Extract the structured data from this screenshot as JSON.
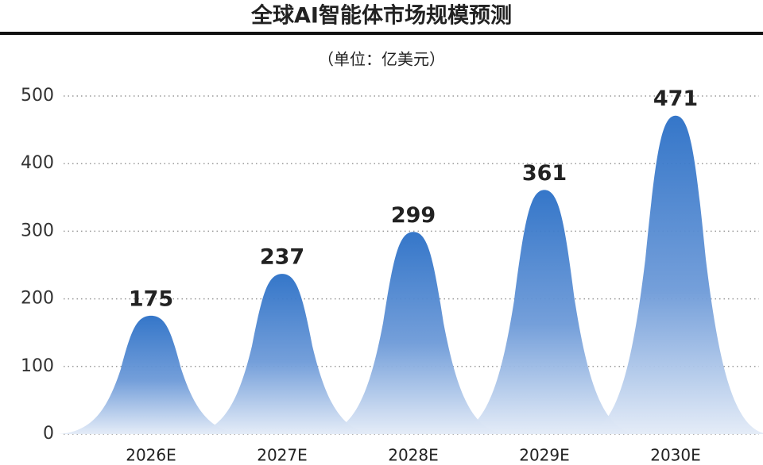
{
  "chart_data": {
    "type": "bar",
    "title": "全球AI智能体市场规模预测",
    "subtitle": "（单位：亿美元）",
    "categories": [
      "2026E",
      "2027E",
      "2028E",
      "2029E",
      "2030E"
    ],
    "values": [
      175,
      237,
      299,
      361,
      471
    ],
    "color": "#2f74c8",
    "ylim": [
      0,
      500
    ],
    "yticks": [
      0,
      100,
      200,
      300,
      400,
      500
    ],
    "grid": true
  }
}
